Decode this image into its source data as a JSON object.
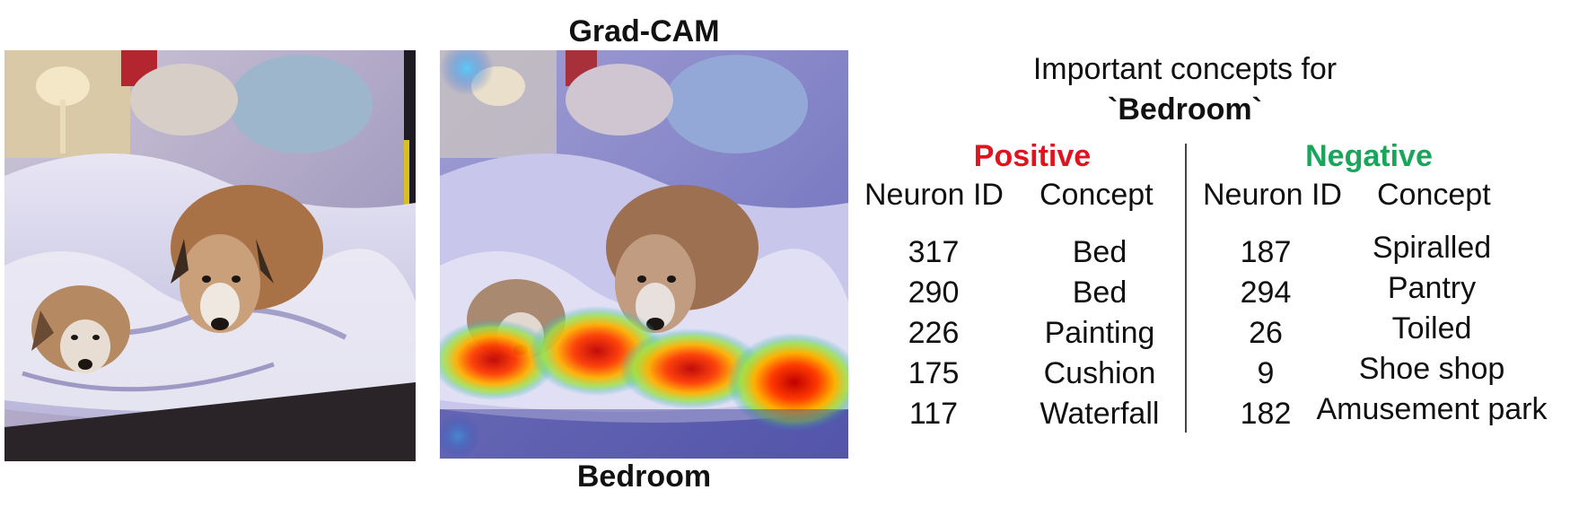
{
  "figure": {
    "gradcam_title": "Grad-CAM",
    "image_label": "Bedroom"
  },
  "panel": {
    "title_line1": "Important concepts for",
    "title_line2": "`Bedroom`",
    "positive": {
      "title": "Positive",
      "color": "#e0141e",
      "headers": [
        "Neuron ID",
        "Concept"
      ],
      "rows": [
        {
          "id": "317",
          "concept": "Bed"
        },
        {
          "id": "290",
          "concept": "Bed"
        },
        {
          "id": "226",
          "concept": "Painting"
        },
        {
          "id": "175",
          "concept": "Cushion"
        },
        {
          "id": "117",
          "concept": "Waterfall"
        }
      ]
    },
    "negative": {
      "title": "Negative",
      "color": "#19a55a",
      "headers": [
        "Neuron ID",
        "Concept"
      ],
      "rows": [
        {
          "id": "187",
          "concept": "Spiralled"
        },
        {
          "id": "294",
          "concept": "Pantry"
        },
        {
          "id": "26",
          "concept": "Toiled"
        },
        {
          "id": "9",
          "concept": "Shoe shop"
        },
        {
          "id": "182",
          "concept": "Amusement park"
        }
      ]
    }
  }
}
